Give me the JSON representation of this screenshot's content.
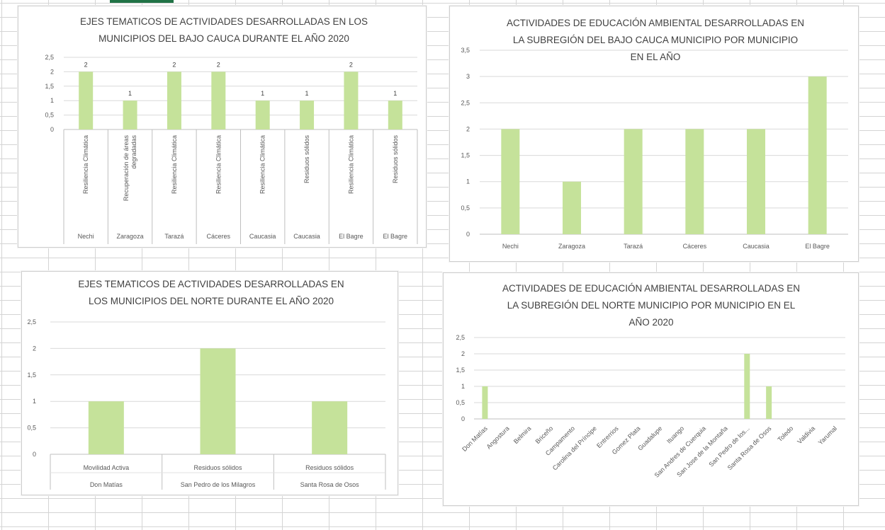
{
  "accent_color": "#217346",
  "bar_color": "#c5e29a",
  "grid_color": "#d9d9d9",
  "chart_data": [
    {
      "id": "c1",
      "type": "bar",
      "title_lines": [
        "EJES TEMATICOS DE ACTIVIDADES DESARROLLADAS EN LOS",
        "MUNICIPIOS DEL BAJO CAUCA DURANTE EL AÑO 2020"
      ],
      "yticks": [
        "0",
        "0,5",
        "1",
        "1,5",
        "2",
        "2,5"
      ],
      "ylim": [
        0,
        2.5
      ],
      "categories": [
        {
          "group": "Nechi",
          "label": [
            "Resiliencia Climática"
          ]
        },
        {
          "group": "Zaragoza",
          "label": [
            "Recuperación de áreas",
            "degradadas"
          ]
        },
        {
          "group": "Tarazá",
          "label": [
            "Resiliencia Climática"
          ]
        },
        {
          "group": "Cáceres",
          "label": [
            "Resiliencia Climática"
          ]
        },
        {
          "group": "Caucasia",
          "label": [
            "Resiliencia Climática"
          ]
        },
        {
          "group": "Caucasia",
          "label": [
            "Residuos sólidos"
          ]
        },
        {
          "group": "El Bagre",
          "label": [
            "Resiliencia Climática"
          ]
        },
        {
          "group": "El Bagre",
          "label": [
            "Residuos sólidos"
          ]
        }
      ],
      "values": [
        2,
        1,
        2,
        2,
        1,
        1,
        2,
        1
      ],
      "data_labels": [
        "2",
        "1",
        "2",
        "2",
        "1",
        "1",
        "2",
        "1"
      ],
      "grid": true
    },
    {
      "id": "c2",
      "type": "bar",
      "title_lines": [
        "ACTIVIDADES DE EDUCACIÓN AMBIENTAL DESARROLLADAS EN",
        "LA SUBREGIÓN DEL BAJO CAUCA MUNICIPIO POR MUNICIPIO",
        "EN EL AÑO"
      ],
      "yticks": [
        "0",
        "0,5",
        "1",
        "1,5",
        "2",
        "2,5",
        "3",
        "3,5"
      ],
      "ylim": [
        0,
        3.5
      ],
      "categories": [
        "Nechi",
        "Zaragoza",
        "Tarazá",
        "Cáceres",
        "Caucasia",
        "El Bagre"
      ],
      "values": [
        2,
        1,
        2,
        2,
        2,
        3
      ],
      "grid": true
    },
    {
      "id": "c3",
      "type": "bar",
      "title_lines": [
        "EJES TEMATICOS DE ACTIVIDADES DESARROLLADAS EN",
        "LOS MUNICIPIOS DEL NORTE DURANTE EL AÑO 2020"
      ],
      "yticks": [
        "0",
        "0,5",
        "1",
        "1,5",
        "2",
        "2,5"
      ],
      "ylim": [
        0,
        2.5
      ],
      "categories": [
        {
          "group": "Don Matías",
          "label": [
            "Movilidad Activa"
          ]
        },
        {
          "group": "San Pedro de los Milagros",
          "label": [
            "Residuos sólidos"
          ]
        },
        {
          "group": "Santa Rosa de Osos",
          "label": [
            "Residuos sólidos"
          ]
        }
      ],
      "values": [
        1,
        2,
        1
      ],
      "grid": true
    },
    {
      "id": "c4",
      "type": "bar",
      "title_lines": [
        "ACTIVIDADES DE EDUCACIÓN AMBIENTAL DESARROLLADAS EN",
        "LA SUBREGIÓN DEL NORTE MUNICIPIO POR MUNICIPIO EN EL",
        "AÑO 2020"
      ],
      "yticks": [
        "0",
        "0,5",
        "1",
        "1,5",
        "2",
        "2,5"
      ],
      "ylim": [
        0,
        2.5
      ],
      "categories": [
        "Don Matías",
        "Angostura",
        "Belmira",
        "Briceño",
        "Campamento",
        "Carolina del Príncipe",
        "Entrerrios",
        "Gomez Plata",
        "Guadalupe",
        "Ituango",
        "San Andres de Cuerquia",
        "San Jose de la Montaña",
        "San Pedro de los...",
        "Santa Rosa de Osos",
        "Toledo",
        "Valdivia",
        "Yarumal"
      ],
      "values": [
        1,
        0,
        0,
        0,
        0,
        0,
        0,
        0,
        0,
        0,
        0,
        0,
        2,
        1,
        0,
        0,
        0
      ],
      "grid": true
    }
  ]
}
